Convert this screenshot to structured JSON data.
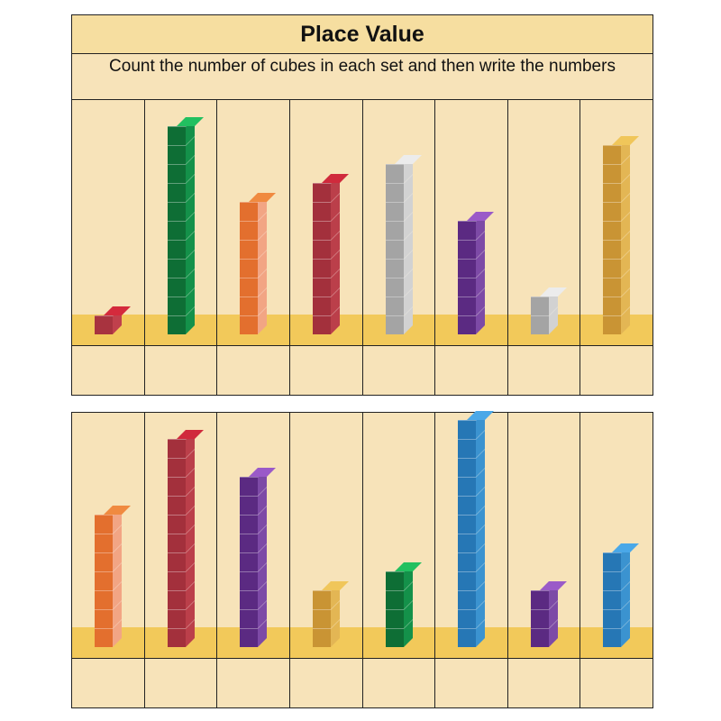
{
  "header": {
    "title": "Place Value",
    "instructions": "Count the number of cubes in each set and then write the numbers"
  },
  "rows": [
    {
      "sets": [
        {
          "count": 1,
          "color": "#a8333f",
          "side": "#c0404c",
          "top": "#d42a3c"
        },
        {
          "count": 11,
          "color": "#0e6e35",
          "side": "#14914a",
          "top": "#22c060"
        },
        {
          "count": 7,
          "color": "#e36f2e",
          "side": "#f2a584",
          "top": "#f08a40"
        },
        {
          "count": 8,
          "color": "#a3303c",
          "side": "#bb3f4a",
          "top": "#d02a3c"
        },
        {
          "count": 9,
          "color": "#a4a4a4",
          "side": "#d2d2d2",
          "top": "#ececec"
        },
        {
          "count": 6,
          "color": "#5b2a82",
          "side": "#7d4aa6",
          "top": "#9a5ac8"
        },
        {
          "count": 2,
          "color": "#a4a4a4",
          "side": "#d2d2d2",
          "top": "#ececec"
        },
        {
          "count": 10,
          "color": "#c99434",
          "side": "#e3b654",
          "top": "#f0c65a"
        }
      ]
    },
    {
      "sets": [
        {
          "count": 7,
          "color": "#e36f2e",
          "side": "#f2a584",
          "top": "#f08a40"
        },
        {
          "count": 11,
          "color": "#a3303c",
          "side": "#bb3f4a",
          "top": "#d02a3c"
        },
        {
          "count": 9,
          "color": "#5b2a82",
          "side": "#7d4aa6",
          "top": "#9a5ac8"
        },
        {
          "count": 3,
          "color": "#c99434",
          "side": "#e3b654",
          "top": "#f0c65a"
        },
        {
          "count": 4,
          "color": "#0e6e35",
          "side": "#14914a",
          "top": "#22c060"
        },
        {
          "count": 12,
          "color": "#2677b5",
          "side": "#3b93d0",
          "top": "#4aa8e8"
        },
        {
          "count": 3,
          "color": "#5b2a82",
          "side": "#7d4aa6",
          "top": "#9a5ac8"
        },
        {
          "count": 5,
          "color": "#2677b5",
          "side": "#3b93d0",
          "top": "#4aa8e8"
        }
      ]
    }
  ]
}
